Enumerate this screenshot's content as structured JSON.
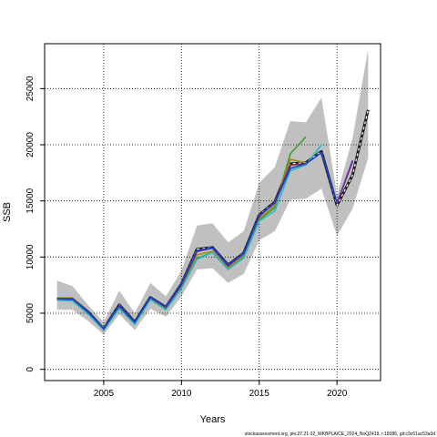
{
  "chart_data": {
    "type": "line",
    "xlabel": "Years",
    "ylabel": "SSB",
    "xlim": [
      2001.2,
      2022.8
    ],
    "ylim": [
      -1000,
      29000
    ],
    "x_ticks": [
      2005,
      2010,
      2015,
      2020
    ],
    "y_ticks": [
      0,
      5000,
      10000,
      15000,
      20000,
      25000
    ],
    "grid": "dotted",
    "confidence_band": {
      "x": [
        2002,
        2003,
        2004,
        2005,
        2006,
        2007,
        2008,
        2009,
        2010,
        2011,
        2012,
        2013,
        2014,
        2015,
        2016,
        2017,
        2018,
        2019,
        2020,
        2021,
        2022
      ],
      "upper": [
        7900,
        7400,
        5700,
        4200,
        7000,
        5000,
        7700,
        6500,
        8800,
        12800,
        13000,
        11300,
        12300,
        16600,
        18000,
        22100,
        22000,
        24200,
        15500,
        20600,
        28500
      ],
      "lower": [
        5300,
        5300,
        4300,
        3100,
        4900,
        3500,
        5400,
        4700,
        6500,
        8900,
        9000,
        7700,
        8500,
        11500,
        12300,
        15100,
        15200,
        16100,
        11900,
        14300,
        18800
      ],
      "color": "#c0c0c0"
    },
    "series": [
      {
        "x": [
          2002,
          2003,
          2004,
          2005,
          2006,
          2007,
          2008,
          2009,
          2010,
          2011,
          2012,
          2013,
          2014,
          2015,
          2016,
          2017,
          2018,
          2019,
          2020,
          2021,
          2022
        ],
        "values": [
          6300,
          6250,
          5100,
          3600,
          5750,
          4200,
          6400,
          5550,
          7600,
          10700,
          10850,
          9300,
          10350,
          13750,
          14900,
          18300,
          18400,
          19400,
          14600,
          17300,
          23100
        ],
        "color": "#1a1a1a",
        "style": "dashed"
      },
      {
        "x": [
          2002,
          2003,
          2004,
          2005,
          2006,
          2007,
          2008,
          2009,
          2010,
          2011,
          2012,
          2013,
          2014,
          2015,
          2016,
          2017,
          2018
        ],
        "values": [
          6300,
          6300,
          5000,
          3700,
          5500,
          4100,
          6300,
          5400,
          7300,
          9900,
          10400,
          8900,
          10000,
          13300,
          14400,
          19200,
          20700
        ],
        "color": "#3a9e28",
        "style": "solid"
      },
      {
        "x": [
          2002,
          2003,
          2004,
          2005,
          2006,
          2007,
          2008,
          2009,
          2010,
          2011,
          2012,
          2013,
          2014,
          2015,
          2016,
          2017,
          2018
        ],
        "values": [
          6350,
          6350,
          5050,
          3650,
          5550,
          4150,
          6350,
          5450,
          7400,
          10200,
          10500,
          9000,
          10100,
          13400,
          14600,
          18700,
          18400
        ],
        "color": "#a08a20",
        "style": "solid"
      },
      {
        "x": [
          2002,
          2003,
          2004,
          2005,
          2006,
          2007,
          2008,
          2009,
          2010,
          2011,
          2012,
          2013,
          2014,
          2015,
          2016,
          2017,
          2018
        ],
        "values": [
          6300,
          6300,
          5050,
          3650,
          5600,
          4150,
          6400,
          5500,
          7500,
          10500,
          10800,
          9200,
          10300,
          13600,
          14900,
          18200,
          18300
        ],
        "color": "#7a2a4a",
        "style": "solid"
      },
      {
        "x": [
          2002,
          2003,
          2004,
          2005,
          2006,
          2007,
          2008,
          2009,
          2010,
          2011,
          2012,
          2013,
          2014,
          2015,
          2016,
          2017,
          2018,
          2019
        ],
        "values": [
          6150,
          6100,
          4900,
          3500,
          5400,
          4000,
          6200,
          5300,
          7200,
          9800,
          10400,
          8900,
          9900,
          13200,
          14100,
          17700,
          18200,
          20000
        ],
        "color": "#2ab8c8",
        "style": "solid"
      },
      {
        "x": [
          2002,
          2003,
          2004,
          2005,
          2006,
          2007,
          2008,
          2009,
          2010,
          2011,
          2012,
          2013,
          2014,
          2015,
          2016,
          2017,
          2018,
          2019,
          2020,
          2021
        ],
        "values": [
          6300,
          6250,
          5100,
          3600,
          5700,
          4200,
          6400,
          5600,
          7600,
          10600,
          10800,
          9300,
          10300,
          13700,
          14800,
          17900,
          18300,
          19300,
          14800,
          18600
        ],
        "color": "#1f3fd0",
        "style": "solid"
      },
      {
        "x": [
          2020,
          2021
        ],
        "values": [
          14800,
          18500
        ],
        "color": "#7a2a9a",
        "style": "solid"
      }
    ]
  },
  "footer_text": "stockassessment.org, ple.27.21-32_WKBPLAICE_2024_NoQ2419, r:18386, git:c9c61ac53a0d"
}
